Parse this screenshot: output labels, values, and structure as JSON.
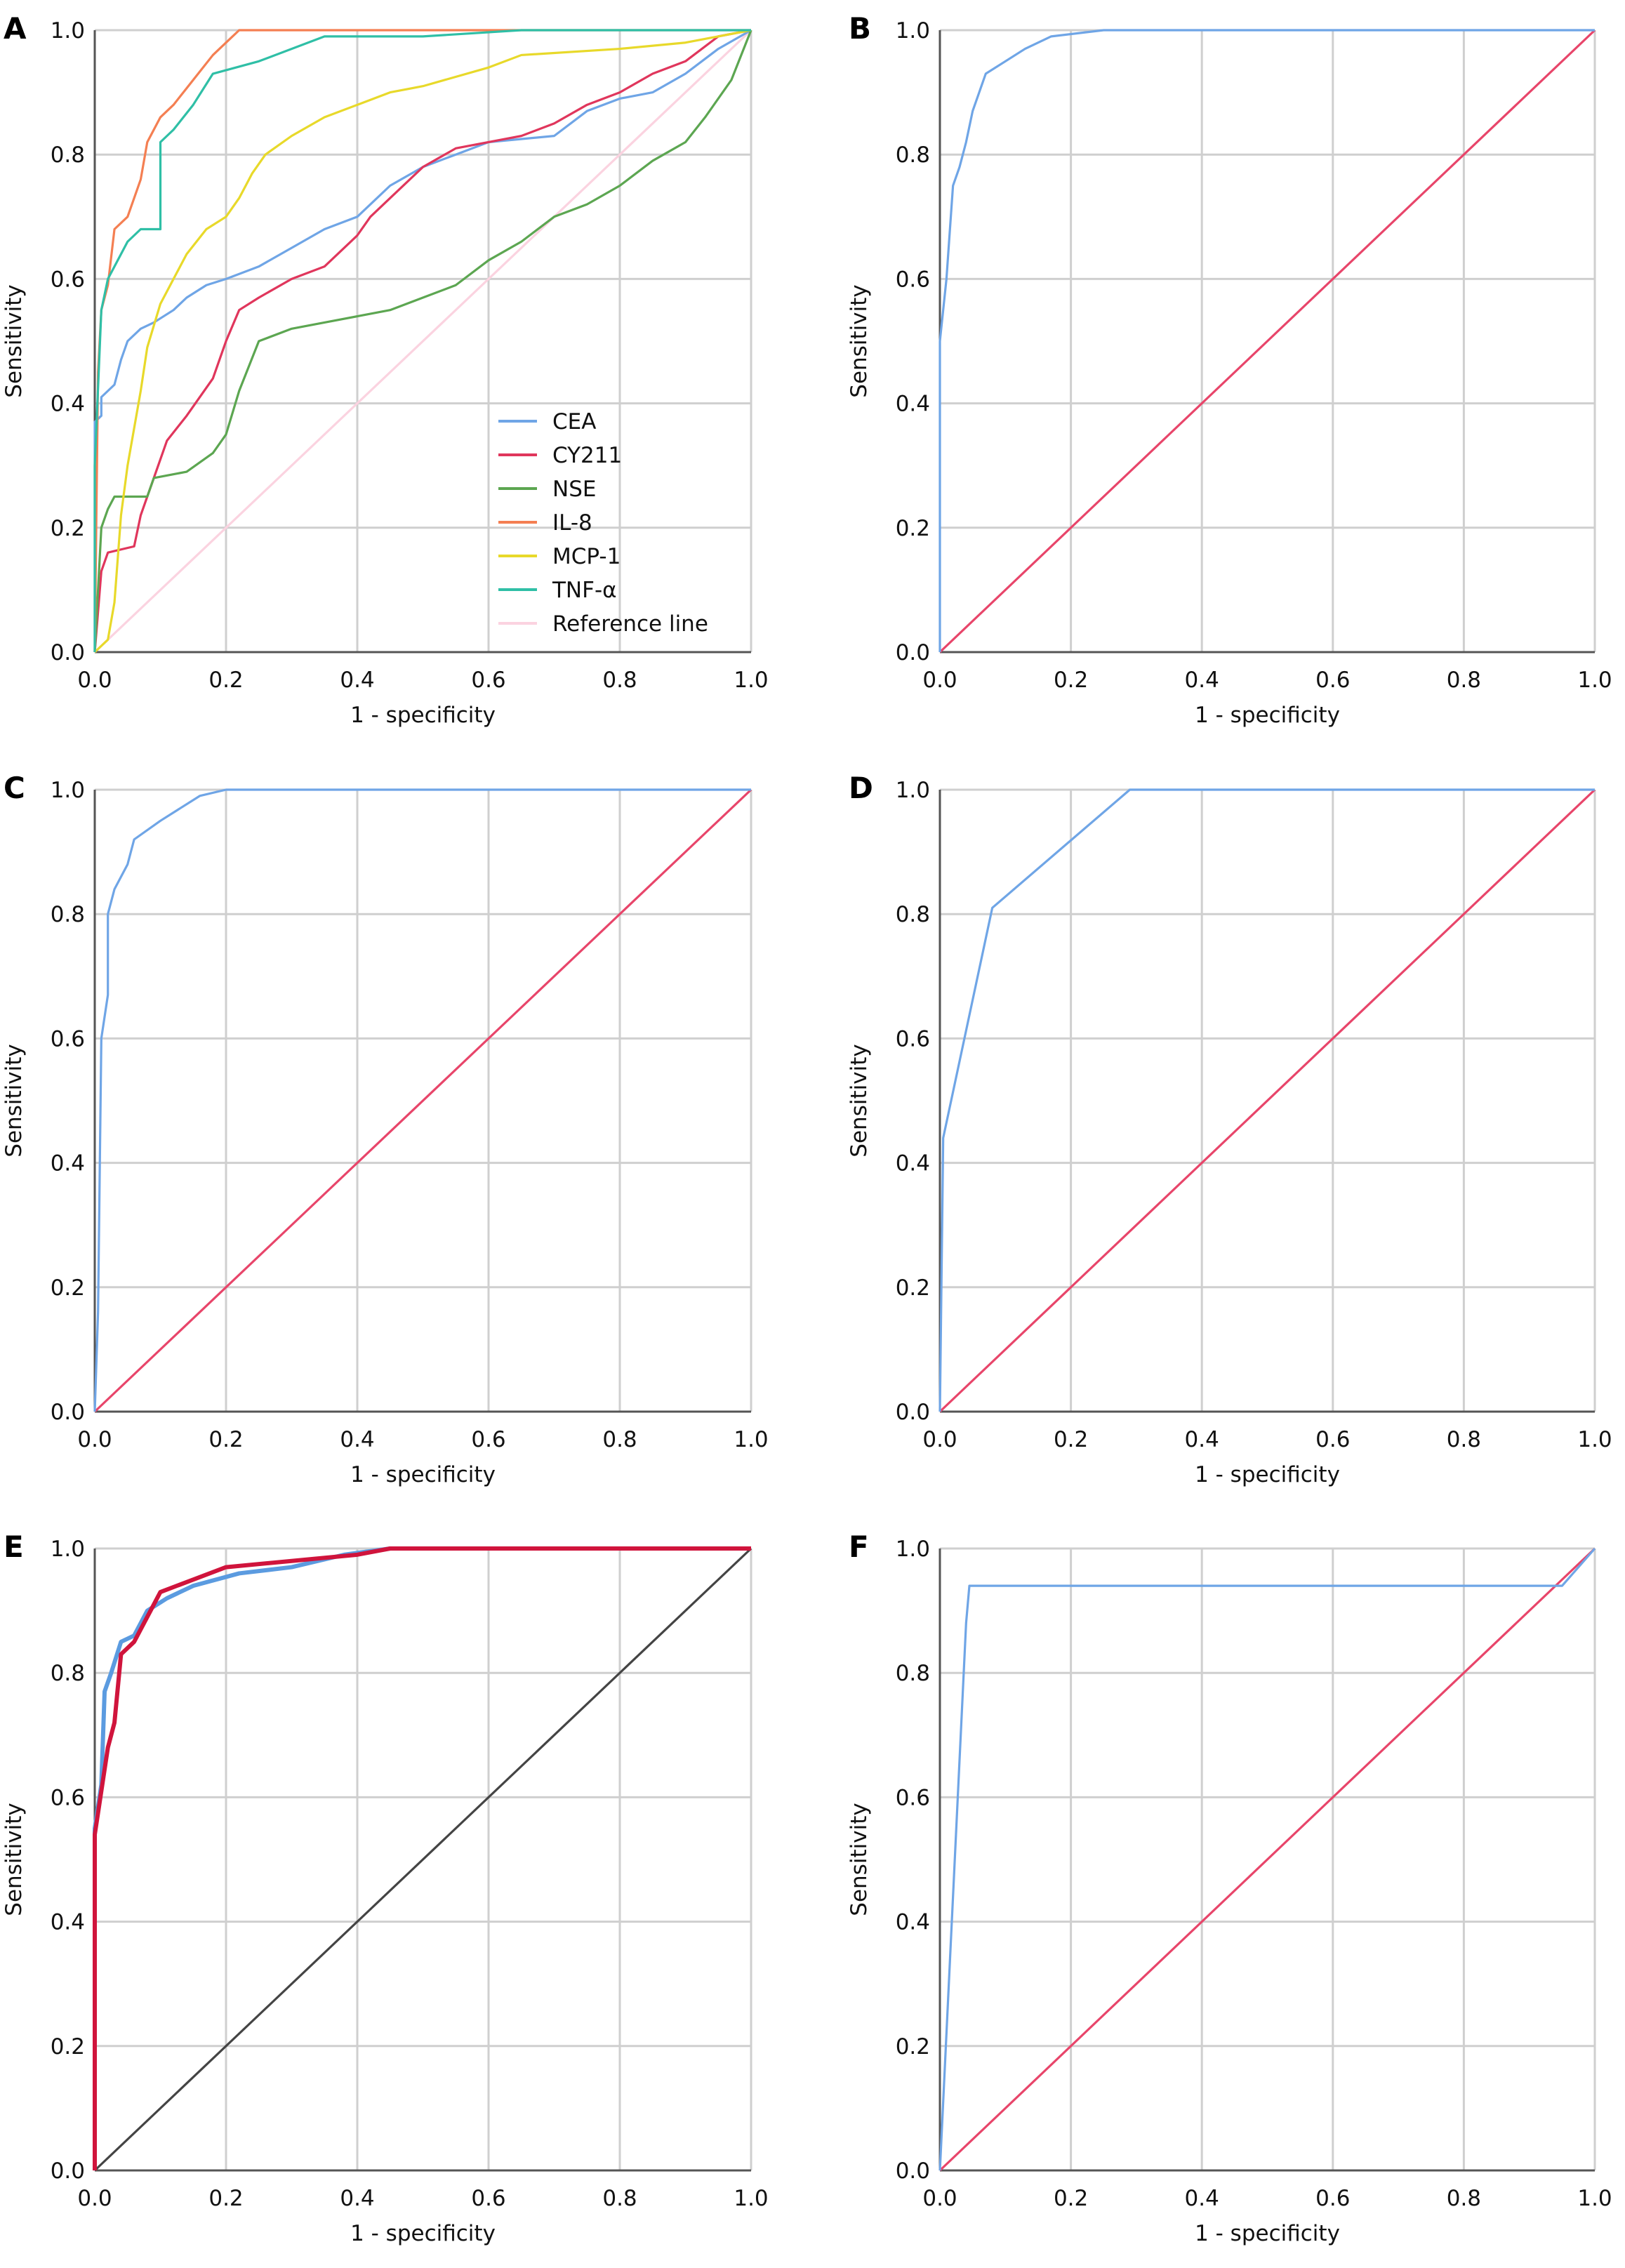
{
  "chart_data": [
    {
      "panel": "A",
      "type": "line",
      "xlabel": "1 - specificity",
      "ylabel": "Sensitivity",
      "xlim": [
        0,
        1
      ],
      "ylim": [
        0,
        1
      ],
      "grid": true,
      "legend": "bottom-center",
      "xticks": [
        "0.0",
        "0.2",
        "0.4",
        "0.6",
        "0.8",
        "1.0"
      ],
      "yticks": [
        "0.0",
        "0.2",
        "0.4",
        "0.6",
        "0.8",
        "1.0"
      ],
      "series": [
        {
          "name": "CEA",
          "color": "#6fa5e6",
          "points": [
            [
              0,
              0
            ],
            [
              0,
              0.37
            ],
            [
              0.01,
              0.38
            ],
            [
              0.01,
              0.41
            ],
            [
              0.03,
              0.43
            ],
            [
              0.04,
              0.47
            ],
            [
              0.05,
              0.5
            ],
            [
              0.07,
              0.52
            ],
            [
              0.09,
              0.53
            ],
            [
              0.12,
              0.55
            ],
            [
              0.14,
              0.57
            ],
            [
              0.17,
              0.59
            ],
            [
              0.2,
              0.6
            ],
            [
              0.25,
              0.62
            ],
            [
              0.3,
              0.65
            ],
            [
              0.35,
              0.68
            ],
            [
              0.4,
              0.7
            ],
            [
              0.45,
              0.75
            ],
            [
              0.5,
              0.78
            ],
            [
              0.55,
              0.8
            ],
            [
              0.6,
              0.82
            ],
            [
              0.7,
              0.83
            ],
            [
              0.75,
              0.87
            ],
            [
              0.8,
              0.89
            ],
            [
              0.85,
              0.9
            ],
            [
              0.9,
              0.93
            ],
            [
              0.95,
              0.97
            ],
            [
              1,
              1
            ]
          ]
        },
        {
          "name": "CY211",
          "color": "#e0365c",
          "points": [
            [
              0,
              0
            ],
            [
              0.01,
              0.13
            ],
            [
              0.02,
              0.16
            ],
            [
              0.06,
              0.17
            ],
            [
              0.07,
              0.22
            ],
            [
              0.09,
              0.28
            ],
            [
              0.11,
              0.34
            ],
            [
              0.14,
              0.38
            ],
            [
              0.18,
              0.44
            ],
            [
              0.2,
              0.5
            ],
            [
              0.22,
              0.55
            ],
            [
              0.25,
              0.57
            ],
            [
              0.3,
              0.6
            ],
            [
              0.35,
              0.62
            ],
            [
              0.4,
              0.67
            ],
            [
              0.42,
              0.7
            ],
            [
              0.45,
              0.73
            ],
            [
              0.5,
              0.78
            ],
            [
              0.55,
              0.81
            ],
            [
              0.6,
              0.82
            ],
            [
              0.65,
              0.83
            ],
            [
              0.7,
              0.85
            ],
            [
              0.75,
              0.88
            ],
            [
              0.8,
              0.9
            ],
            [
              0.85,
              0.93
            ],
            [
              0.9,
              0.95
            ],
            [
              0.95,
              0.99
            ],
            [
              1,
              1
            ]
          ]
        },
        {
          "name": "NSE",
          "color": "#5ca651",
          "points": [
            [
              0,
              0
            ],
            [
              0.01,
              0.2
            ],
            [
              0.02,
              0.23
            ],
            [
              0.03,
              0.25
            ],
            [
              0.08,
              0.25
            ],
            [
              0.09,
              0.28
            ],
            [
              0.14,
              0.29
            ],
            [
              0.18,
              0.32
            ],
            [
              0.2,
              0.35
            ],
            [
              0.22,
              0.42
            ],
            [
              0.25,
              0.5
            ],
            [
              0.3,
              0.52
            ],
            [
              0.35,
              0.53
            ],
            [
              0.4,
              0.54
            ],
            [
              0.45,
              0.55
            ],
            [
              0.5,
              0.57
            ],
            [
              0.55,
              0.59
            ],
            [
              0.6,
              0.63
            ],
            [
              0.65,
              0.66
            ],
            [
              0.7,
              0.7
            ],
            [
              0.75,
              0.72
            ],
            [
              0.8,
              0.75
            ],
            [
              0.85,
              0.79
            ],
            [
              0.9,
              0.82
            ],
            [
              0.93,
              0.86
            ],
            [
              0.97,
              0.92
            ],
            [
              1,
              1
            ]
          ]
        },
        {
          "name": "IL-8",
          "color": "#f47f52",
          "points": [
            [
              0,
              0
            ],
            [
              0.005,
              0.45
            ],
            [
              0.01,
              0.55
            ],
            [
              0.02,
              0.59
            ],
            [
              0.03,
              0.68
            ],
            [
              0.05,
              0.7
            ],
            [
              0.07,
              0.76
            ],
            [
              0.08,
              0.82
            ],
            [
              0.1,
              0.86
            ],
            [
              0.12,
              0.88
            ],
            [
              0.15,
              0.92
            ],
            [
              0.18,
              0.96
            ],
            [
              0.2,
              0.98
            ],
            [
              0.22,
              1
            ],
            [
              1,
              1
            ]
          ]
        },
        {
          "name": "MCP-1",
          "color": "#e8d92a",
          "points": [
            [
              0,
              0
            ],
            [
              0.02,
              0.02
            ],
            [
              0.03,
              0.08
            ],
            [
              0.04,
              0.22
            ],
            [
              0.05,
              0.3
            ],
            [
              0.06,
              0.36
            ],
            [
              0.07,
              0.42
            ],
            [
              0.08,
              0.49
            ],
            [
              0.1,
              0.56
            ],
            [
              0.12,
              0.6
            ],
            [
              0.14,
              0.64
            ],
            [
              0.17,
              0.68
            ],
            [
              0.2,
              0.7
            ],
            [
              0.22,
              0.73
            ],
            [
              0.24,
              0.77
            ],
            [
              0.26,
              0.8
            ],
            [
              0.3,
              0.83
            ],
            [
              0.35,
              0.86
            ],
            [
              0.4,
              0.88
            ],
            [
              0.45,
              0.9
            ],
            [
              0.5,
              0.91
            ],
            [
              0.6,
              0.94
            ],
            [
              0.65,
              0.96
            ],
            [
              0.8,
              0.97
            ],
            [
              0.9,
              0.98
            ],
            [
              1,
              1
            ]
          ]
        },
        {
          "name": "TNF-α",
          "color": "#2fbfa6",
          "points": [
            [
              0,
              0
            ],
            [
              0,
              0.3
            ],
            [
              0.01,
              0.55
            ],
            [
              0.02,
              0.6
            ],
            [
              0.05,
              0.66
            ],
            [
              0.07,
              0.68
            ],
            [
              0.1,
              0.68
            ],
            [
              0.1,
              0.82
            ],
            [
              0.12,
              0.84
            ],
            [
              0.15,
              0.88
            ],
            [
              0.18,
              0.93
            ],
            [
              0.25,
              0.95
            ],
            [
              0.35,
              0.99
            ],
            [
              0.5,
              0.99
            ],
            [
              0.65,
              1
            ],
            [
              1,
              1
            ]
          ]
        },
        {
          "name": "Reference line",
          "color": "#fbd3e0",
          "points": [
            [
              0,
              0
            ],
            [
              1,
              1
            ]
          ]
        }
      ]
    },
    {
      "panel": "B",
      "type": "line",
      "xlabel": "1 - specificity",
      "ylabel": "Sensitivity",
      "xlim": [
        0,
        1
      ],
      "ylim": [
        0,
        1
      ],
      "grid": true,
      "xticks": [
        "0.0",
        "0.2",
        "0.4",
        "0.6",
        "0.8",
        "1.0"
      ],
      "yticks": [
        "0.0",
        "0.2",
        "0.4",
        "0.6",
        "0.8",
        "1.0"
      ],
      "series": [
        {
          "color": "#6fa5e6",
          "points": [
            [
              0,
              0
            ],
            [
              0,
              0.5
            ],
            [
              0.01,
              0.6
            ],
            [
              0.02,
              0.75
            ],
            [
              0.03,
              0.78
            ],
            [
              0.04,
              0.82
            ],
            [
              0.05,
              0.87
            ],
            [
              0.06,
              0.9
            ],
            [
              0.07,
              0.93
            ],
            [
              0.1,
              0.95
            ],
            [
              0.13,
              0.97
            ],
            [
              0.17,
              0.99
            ],
            [
              0.25,
              1
            ],
            [
              1,
              1
            ]
          ]
        },
        {
          "color": "#e8456a",
          "points": [
            [
              0,
              0
            ],
            [
              1,
              1
            ]
          ]
        }
      ]
    },
    {
      "panel": "C",
      "type": "line",
      "xlabel": "1 - specificity",
      "ylabel": "Sensitivity",
      "xlim": [
        0,
        1
      ],
      "ylim": [
        0,
        1
      ],
      "grid": true,
      "xticks": [
        "0.0",
        "0.2",
        "0.4",
        "0.6",
        "0.8",
        "1.0"
      ],
      "yticks": [
        "0.0",
        "0.2",
        "0.4",
        "0.6",
        "0.8",
        "1.0"
      ],
      "series": [
        {
          "color": "#6fa5e6",
          "points": [
            [
              0,
              0
            ],
            [
              0.005,
              0.16
            ],
            [
              0.01,
              0.6
            ],
            [
              0.02,
              0.67
            ],
            [
              0.02,
              0.8
            ],
            [
              0.03,
              0.84
            ],
            [
              0.05,
              0.88
            ],
            [
              0.06,
              0.92
            ],
            [
              0.1,
              0.95
            ],
            [
              0.13,
              0.97
            ],
            [
              0.16,
              0.99
            ],
            [
              0.2,
              1
            ],
            [
              1,
              1
            ]
          ]
        },
        {
          "color": "#e8456a",
          "points": [
            [
              0,
              0
            ],
            [
              1,
              1
            ]
          ]
        }
      ]
    },
    {
      "panel": "D",
      "type": "line",
      "xlabel": "1 - specificity",
      "ylabel": "Sensitivity",
      "xlim": [
        0,
        1
      ],
      "ylim": [
        0,
        1
      ],
      "grid": true,
      "xticks": [
        "0.0",
        "0.2",
        "0.4",
        "0.6",
        "0.8",
        "1.0"
      ],
      "yticks": [
        "0.0",
        "0.2",
        "0.4",
        "0.6",
        "0.8",
        "1.0"
      ],
      "series": [
        {
          "color": "#6fa5e6",
          "points": [
            [
              0,
              0
            ],
            [
              0.005,
              0.44
            ],
            [
              0.08,
              0.81
            ],
            [
              0.29,
              1
            ],
            [
              1,
              1
            ]
          ]
        },
        {
          "color": "#e8456a",
          "points": [
            [
              0,
              0
            ],
            [
              1,
              1
            ]
          ]
        }
      ]
    },
    {
      "panel": "E",
      "type": "line",
      "xlabel": "1 - specificity",
      "ylabel": "Sensitivity",
      "xlim": [
        0,
        1
      ],
      "ylim": [
        0,
        1
      ],
      "grid": true,
      "xticks": [
        "0.0",
        "0.2",
        "0.4",
        "0.6",
        "0.8",
        "1.0"
      ],
      "yticks": [
        "0.0",
        "0.2",
        "0.4",
        "0.6",
        "0.8",
        "1.0"
      ],
      "series": [
        {
          "color": "#5b9be0",
          "width": 6,
          "points": [
            [
              0,
              0
            ],
            [
              0,
              0.55
            ],
            [
              0.01,
              0.62
            ],
            [
              0.015,
              0.77
            ],
            [
              0.025,
              0.8
            ],
            [
              0.04,
              0.85
            ],
            [
              0.06,
              0.86
            ],
            [
              0.08,
              0.9
            ],
            [
              0.11,
              0.92
            ],
            [
              0.15,
              0.94
            ],
            [
              0.22,
              0.96
            ],
            [
              0.3,
              0.97
            ],
            [
              0.38,
              0.99
            ],
            [
              0.45,
              1
            ],
            [
              1,
              1
            ]
          ]
        },
        {
          "color": "#d0143c",
          "width": 6,
          "points": [
            [
              0,
              0
            ],
            [
              0,
              0.54
            ],
            [
              0.01,
              0.61
            ],
            [
              0.02,
              0.68
            ],
            [
              0.03,
              0.72
            ],
            [
              0.04,
              0.83
            ],
            [
              0.06,
              0.85
            ],
            [
              0.08,
              0.89
            ],
            [
              0.1,
              0.93
            ],
            [
              0.15,
              0.95
            ],
            [
              0.2,
              0.97
            ],
            [
              0.3,
              0.98
            ],
            [
              0.4,
              0.99
            ],
            [
              0.45,
              1
            ],
            [
              1,
              1
            ]
          ]
        },
        {
          "color": "#444444",
          "points": [
            [
              0,
              0
            ],
            [
              1,
              1
            ]
          ]
        }
      ]
    },
    {
      "panel": "F",
      "type": "line",
      "xlabel": "1 - specificity",
      "ylabel": "Sensitivity",
      "xlim": [
        0,
        1
      ],
      "ylim": [
        0,
        1
      ],
      "grid": true,
      "xticks": [
        "0.0",
        "0.2",
        "0.4",
        "0.6",
        "0.8",
        "1.0"
      ],
      "yticks": [
        "0.0",
        "0.2",
        "0.4",
        "0.6",
        "0.8",
        "1.0"
      ],
      "series": [
        {
          "color": "#6fa5e6",
          "points": [
            [
              0,
              0
            ],
            [
              0.04,
              0.88
            ],
            [
              0.045,
              0.94
            ],
            [
              0.95,
              0.94
            ],
            [
              1,
              1
            ]
          ]
        },
        {
          "color": "#e8456a",
          "points": [
            [
              0,
              0
            ],
            [
              1,
              1
            ]
          ]
        }
      ]
    }
  ]
}
